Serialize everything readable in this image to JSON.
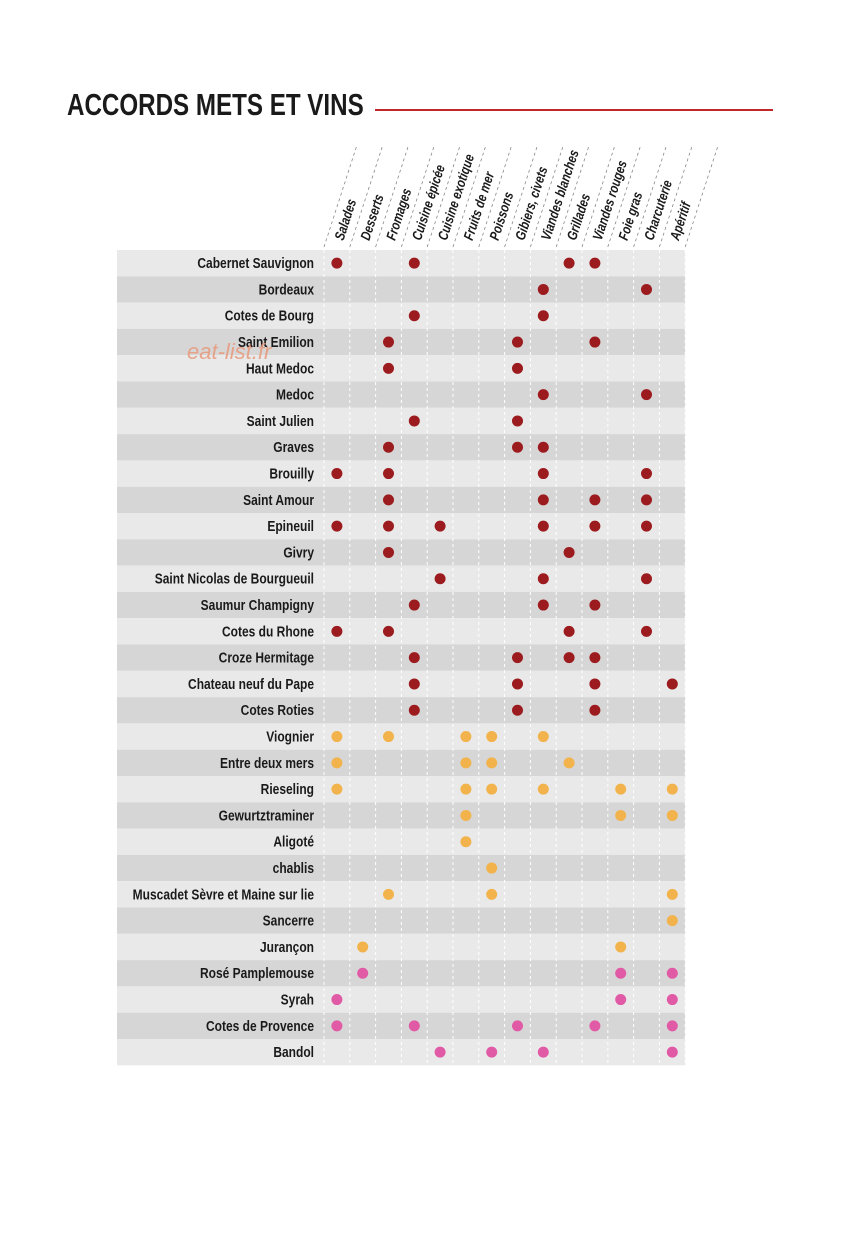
{
  "title": "ACCORDS  METS ET VINS",
  "watermark": "eat-list.fr",
  "columns": [
    "Salades",
    "Desserts",
    "Fromages",
    "Cuisine épicée",
    "Cuisine exotique",
    "Fruits de mer",
    "Poissons",
    "Gibiers, civets",
    "Viandes blanches",
    "Grillades",
    "Viandes rouges",
    "Foie gras",
    "Charcuterie",
    "Apéritif"
  ],
  "rows": [
    {
      "wine": "Cabernet Sauvignon",
      "color": "#9b1b1e",
      "pairs": [
        0,
        3,
        9,
        10
      ]
    },
    {
      "wine": "Bordeaux",
      "color": "#9b1b1e",
      "pairs": [
        8,
        12
      ]
    },
    {
      "wine": "Cotes de Bourg",
      "color": "#9b1b1e",
      "pairs": [
        3,
        8
      ]
    },
    {
      "wine": "Saint Emilion",
      "color": "#9b1b1e",
      "pairs": [
        2,
        7,
        10
      ]
    },
    {
      "wine": "Haut Medoc",
      "color": "#9b1b1e",
      "pairs": [
        2,
        7
      ]
    },
    {
      "wine": "Medoc",
      "color": "#9b1b1e",
      "pairs": [
        8,
        12
      ]
    },
    {
      "wine": "Saint Julien",
      "color": "#9b1b1e",
      "pairs": [
        3,
        7
      ]
    },
    {
      "wine": "Graves",
      "color": "#9b1b1e",
      "pairs": [
        2,
        7,
        8
      ]
    },
    {
      "wine": "Brouilly",
      "color": "#9b1b1e",
      "pairs": [
        0,
        2,
        8,
        12
      ]
    },
    {
      "wine": "Saint Amour",
      "color": "#9b1b1e",
      "pairs": [
        2,
        8,
        10,
        12
      ]
    },
    {
      "wine": "Epineuil",
      "color": "#9b1b1e",
      "pairs": [
        0,
        2,
        4,
        8,
        10,
        12
      ]
    },
    {
      "wine": "Givry",
      "color": "#9b1b1e",
      "pairs": [
        2,
        9
      ]
    },
    {
      "wine": "Saint Nicolas de Bourgueuil",
      "color": "#9b1b1e",
      "pairs": [
        4,
        8,
        12
      ]
    },
    {
      "wine": "Saumur Champigny",
      "color": "#9b1b1e",
      "pairs": [
        3,
        8,
        10
      ]
    },
    {
      "wine": "Cotes du Rhone",
      "color": "#9b1b1e",
      "pairs": [
        0,
        2,
        9,
        12
      ]
    },
    {
      "wine": "Croze Hermitage",
      "color": "#9b1b1e",
      "pairs": [
        3,
        7,
        9,
        10
      ]
    },
    {
      "wine": "Chateau neuf du Pape",
      "color": "#9b1b1e",
      "pairs": [
        3,
        7,
        10,
        13
      ]
    },
    {
      "wine": "Cotes Roties",
      "color": "#9b1b1e",
      "pairs": [
        3,
        7,
        10
      ]
    },
    {
      "wine": "Viognier",
      "color": "#f2b34c",
      "pairs": [
        0,
        2,
        5,
        6,
        8
      ]
    },
    {
      "wine": "Entre deux mers",
      "color": "#f2b34c",
      "pairs": [
        0,
        5,
        6,
        9
      ]
    },
    {
      "wine": "Rieseling",
      "color": "#f2b34c",
      "pairs": [
        0,
        5,
        6,
        8,
        11,
        13
      ]
    },
    {
      "wine": "Gewurtztraminer",
      "color": "#f2b34c",
      "pairs": [
        5,
        11,
        13
      ]
    },
    {
      "wine": "Aligoté",
      "color": "#f2b34c",
      "pairs": [
        5
      ]
    },
    {
      "wine": "chablis",
      "color": "#f2b34c",
      "pairs": [
        6
      ]
    },
    {
      "wine": "Muscadet Sèvre et Maine sur lie",
      "color": "#f2b34c",
      "pairs": [
        2,
        6,
        13
      ]
    },
    {
      "wine": "Sancerre",
      "color": "#f2b34c",
      "pairs": [
        13
      ]
    },
    {
      "wine": "Jurançon",
      "color": "#f2b34c",
      "pairs": [
        1,
        11
      ]
    },
    {
      "wine": "Rosé Pamplemouse",
      "color": "#e05aa6",
      "pairs": [
        1,
        11,
        13
      ]
    },
    {
      "wine": "Syrah",
      "color": "#e05aa6",
      "pairs": [
        0,
        11,
        13
      ]
    },
    {
      "wine": "Cotes de Provence",
      "color": "#e05aa6",
      "pairs": [
        0,
        3,
        7,
        10,
        13
      ]
    },
    {
      "wine": "Bandol",
      "color": "#e05aa6",
      "pairs": [
        4,
        6,
        8,
        13
      ]
    }
  ]
}
